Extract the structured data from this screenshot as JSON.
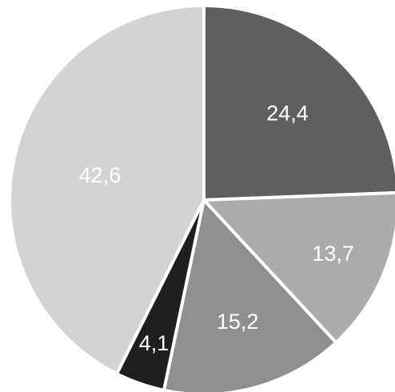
{
  "chart_data": {
    "type": "pie",
    "categories": [
      "",
      "",
      "",
      "",
      ""
    ],
    "values": [
      24.4,
      13.7,
      15.2,
      4.1,
      42.6
    ],
    "labels": [
      "24,4",
      "13,7",
      "15,2",
      "4,1",
      "42,6"
    ],
    "colors": [
      "#5f5f5f",
      "#ababab",
      "#8f8f8f",
      "#1f1f1f",
      "#d3d3d3"
    ],
    "start_angle_deg": 0,
    "direction": "clockwise",
    "legend": "none"
  }
}
